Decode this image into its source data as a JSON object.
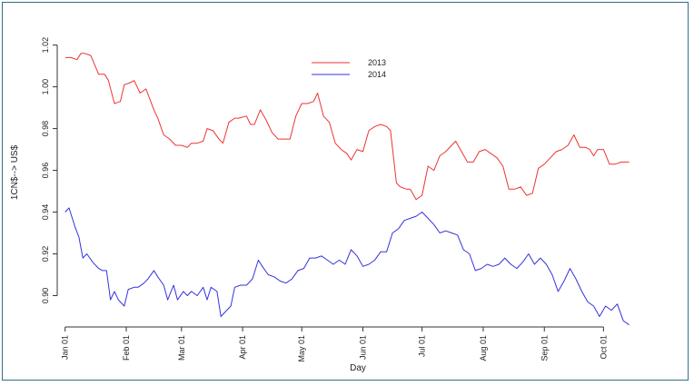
{
  "chart_data": {
    "type": "line",
    "title": "",
    "xlabel": "Day",
    "ylabel": "1CN$--> US$",
    "ylim": [
      0.885,
      1.022
    ],
    "yticks": [
      "0.90",
      "0.92",
      "0.94",
      "0.96",
      "0.98",
      "1.00",
      "1.02"
    ],
    "xticks": [
      {
        "label": "Jan 01",
        "day": 0
      },
      {
        "label": "Feb 01",
        "day": 31
      },
      {
        "label": "Mar 01",
        "day": 59
      },
      {
        "label": "Apr 01",
        "day": 90
      },
      {
        "label": "May 01",
        "day": 120
      },
      {
        "label": "Jun 01",
        "day": 151
      },
      {
        "label": "Jul 01",
        "day": 181
      },
      {
        "label": "Aug 01",
        "day": 212
      },
      {
        "label": "Sep 01",
        "day": 243
      },
      {
        "label": "Oct 01",
        "day": 273
      }
    ],
    "xlim": [
      -4,
      300
    ],
    "grid": false,
    "legend_position": "top-center",
    "series": [
      {
        "name": "2013",
        "color": "#ee3333",
        "x": [
          0,
          3,
          6,
          8,
          10,
          13,
          17,
          20,
          22,
          25,
          28,
          30,
          33,
          35,
          38,
          41,
          45,
          47,
          50,
          53,
          56,
          59,
          62,
          64,
          67,
          70,
          72,
          75,
          78,
          80,
          83,
          86,
          88,
          92,
          94,
          96,
          99,
          102,
          105,
          108,
          111,
          114,
          117,
          120,
          123,
          126,
          128,
          131,
          134,
          137,
          140,
          143,
          145,
          148,
          151,
          154,
          157,
          160,
          163,
          165,
          168,
          170,
          173,
          175,
          178,
          181,
          184,
          187,
          190,
          193,
          196,
          198,
          201,
          204,
          207,
          210,
          213,
          216,
          219,
          222,
          225,
          228,
          231,
          234,
          237,
          240,
          243,
          246,
          249,
          252,
          255,
          258,
          261,
          264,
          266,
          268,
          270,
          273,
          276,
          279,
          282,
          286
        ],
        "y": [
          1.014,
          1.014,
          1.013,
          1.016,
          1.016,
          1.015,
          1.006,
          1.006,
          1.003,
          0.992,
          0.993,
          1.001,
          1.002,
          1.003,
          0.997,
          0.999,
          0.989,
          0.985,
          0.977,
          0.975,
          0.972,
          0.972,
          0.971,
          0.973,
          0.973,
          0.974,
          0.98,
          0.979,
          0.975,
          0.973,
          0.983,
          0.985,
          0.985,
          0.986,
          0.982,
          0.982,
          0.989,
          0.984,
          0.978,
          0.975,
          0.975,
          0.975,
          0.986,
          0.992,
          0.992,
          0.993,
          0.997,
          0.986,
          0.983,
          0.973,
          0.97,
          0.968,
          0.965,
          0.97,
          0.969,
          0.979,
          0.981,
          0.982,
          0.981,
          0.979,
          0.954,
          0.952,
          0.951,
          0.951,
          0.946,
          0.948,
          0.962,
          0.96,
          0.967,
          0.969,
          0.972,
          0.974,
          0.969,
          0.964,
          0.964,
          0.969,
          0.97,
          0.968,
          0.966,
          0.962,
          0.951,
          0.951,
          0.952,
          0.948,
          0.949,
          0.961,
          0.963,
          0.966,
          0.969,
          0.97,
          0.972,
          0.977,
          0.971,
          0.971,
          0.97,
          0.967,
          0.97,
          0.97,
          0.963,
          0.963,
          0.964,
          0.964
        ]
      },
      {
        "name": "2014",
        "color": "#3333dd",
        "x": [
          0,
          2,
          5,
          7,
          9,
          11,
          14,
          17,
          19,
          21,
          23,
          25,
          27,
          30,
          32,
          35,
          37,
          40,
          42,
          45,
          47,
          50,
          52,
          55,
          57,
          60,
          62,
          64,
          67,
          70,
          72,
          74,
          77,
          79,
          81,
          84,
          86,
          89,
          92,
          95,
          98,
          100,
          103,
          106,
          109,
          112,
          115,
          118,
          121,
          124,
          127,
          130,
          133,
          136,
          139,
          142,
          145,
          148,
          151,
          154,
          157,
          160,
          163,
          166,
          169,
          172,
          175,
          178,
          181,
          184,
          187,
          190,
          193,
          196,
          199,
          202,
          205,
          208,
          211,
          214,
          217,
          220,
          223,
          226,
          229,
          232,
          235,
          238,
          241,
          244,
          247,
          250,
          253,
          256,
          259,
          262,
          265,
          268,
          271,
          274,
          277,
          280,
          283,
          286
        ],
        "y": [
          0.94,
          0.942,
          0.933,
          0.928,
          0.918,
          0.92,
          0.916,
          0.913,
          0.912,
          0.912,
          0.898,
          0.902,
          0.898,
          0.895,
          0.903,
          0.904,
          0.904,
          0.906,
          0.908,
          0.912,
          0.909,
          0.905,
          0.898,
          0.905,
          0.898,
          0.902,
          0.9,
          0.902,
          0.9,
          0.904,
          0.898,
          0.904,
          0.902,
          0.89,
          0.892,
          0.895,
          0.904,
          0.905,
          0.905,
          0.908,
          0.917,
          0.914,
          0.91,
          0.909,
          0.907,
          0.906,
          0.908,
          0.912,
          0.913,
          0.918,
          0.918,
          0.919,
          0.917,
          0.915,
          0.917,
          0.915,
          0.922,
          0.919,
          0.914,
          0.915,
          0.917,
          0.921,
          0.921,
          0.93,
          0.932,
          0.936,
          0.937,
          0.938,
          0.94,
          0.937,
          0.934,
          0.93,
          0.931,
          0.93,
          0.929,
          0.922,
          0.92,
          0.912,
          0.913,
          0.915,
          0.914,
          0.915,
          0.918,
          0.915,
          0.913,
          0.916,
          0.92,
          0.915,
          0.918,
          0.915,
          0.91,
          0.902,
          0.907,
          0.913,
          0.908,
          0.902,
          0.897,
          0.895,
          0.89,
          0.895,
          0.893,
          0.896,
          0.888,
          0.886
        ]
      }
    ]
  }
}
